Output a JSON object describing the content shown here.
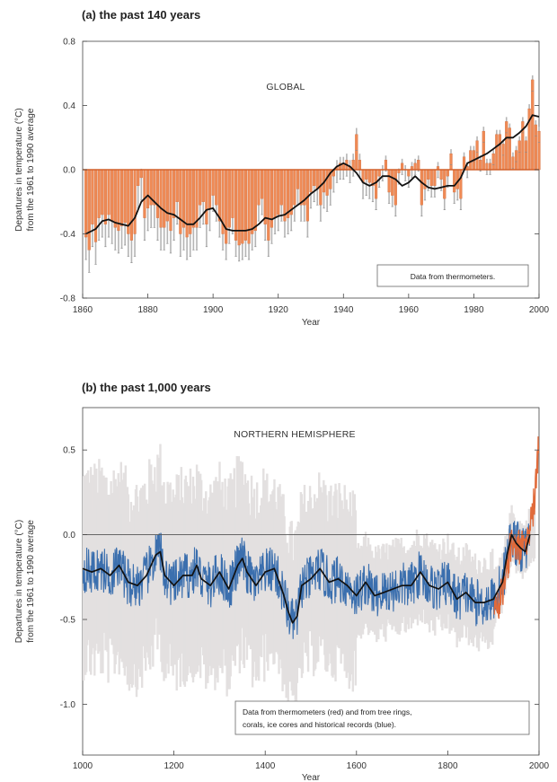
{
  "chart_data": [
    {
      "type": "bar",
      "panel_title": "(a) the past 140 years",
      "region_label": "GLOBAL",
      "xlabel": "Year",
      "ylabel_line1": "Departures in temperature (°C)",
      "ylabel_line2": "from the 1961 to 1990 average",
      "xlim": [
        1860,
        2000
      ],
      "ylim": [
        -0.8,
        0.8
      ],
      "x_ticks": [
        "1860",
        "1880",
        "1900",
        "1920",
        "1940",
        "1960",
        "1980",
        "2000"
      ],
      "y_ticks": [
        "0.8",
        "0.4",
        "0.0",
        "-0.4",
        "-0.8"
      ],
      "note": "Data from thermometers.",
      "bar_color": "#ef8a55",
      "smooth_color": "#111111",
      "series": [
        {
          "kind": "annual_bars",
          "x": [
            1861,
            1862,
            1863,
            1864,
            1865,
            1866,
            1867,
            1868,
            1869,
            1870,
            1871,
            1872,
            1873,
            1874,
            1875,
            1876,
            1877,
            1878,
            1879,
            1880,
            1881,
            1882,
            1883,
            1884,
            1885,
            1886,
            1887,
            1888,
            1889,
            1890,
            1891,
            1892,
            1893,
            1894,
            1895,
            1896,
            1897,
            1898,
            1899,
            1900,
            1901,
            1902,
            1903,
            1904,
            1905,
            1906,
            1907,
            1908,
            1909,
            1910,
            1911,
            1912,
            1913,
            1914,
            1915,
            1916,
            1917,
            1918,
            1919,
            1920,
            1921,
            1922,
            1923,
            1924,
            1925,
            1926,
            1927,
            1928,
            1929,
            1930,
            1931,
            1932,
            1933,
            1934,
            1935,
            1936,
            1937,
            1938,
            1939,
            1940,
            1941,
            1942,
            1943,
            1944,
            1945,
            1946,
            1947,
            1948,
            1949,
            1950,
            1951,
            1952,
            1953,
            1954,
            1955,
            1956,
            1957,
            1958,
            1959,
            1960,
            1961,
            1962,
            1963,
            1964,
            1965,
            1966,
            1967,
            1968,
            1969,
            1970,
            1971,
            1972,
            1973,
            1974,
            1975,
            1976,
            1977,
            1978,
            1979,
            1980,
            1981,
            1982,
            1983,
            1984,
            1985,
            1986,
            1987,
            1988,
            1989,
            1990,
            1991,
            1992,
            1993,
            1994,
            1995,
            1996,
            1997,
            1998,
            1999,
            2000
          ],
          "values": [
            -0.42,
            -0.5,
            -0.34,
            -0.45,
            -0.3,
            -0.28,
            -0.34,
            -0.28,
            -0.32,
            -0.36,
            -0.38,
            -0.35,
            -0.33,
            -0.4,
            -0.44,
            -0.4,
            -0.1,
            -0.05,
            -0.3,
            -0.24,
            -0.22,
            -0.22,
            -0.3,
            -0.36,
            -0.36,
            -0.32,
            -0.38,
            -0.3,
            -0.2,
            -0.4,
            -0.36,
            -0.42,
            -0.4,
            -0.36,
            -0.36,
            -0.22,
            -0.2,
            -0.34,
            -0.24,
            -0.16,
            -0.22,
            -0.32,
            -0.4,
            -0.46,
            -0.36,
            -0.3,
            -0.44,
            -0.47,
            -0.46,
            -0.44,
            -0.46,
            -0.4,
            -0.38,
            -0.22,
            -0.18,
            -0.34,
            -0.44,
            -0.36,
            -0.3,
            -0.28,
            -0.22,
            -0.32,
            -0.3,
            -0.28,
            -0.22,
            -0.12,
            -0.22,
            -0.22,
            -0.32,
            -0.14,
            -0.1,
            -0.12,
            -0.22,
            -0.14,
            -0.16,
            -0.12,
            -0.04,
            0.02,
            0.04,
            0.04,
            0.06,
            0.02,
            0.06,
            0.22,
            0.06,
            -0.08,
            -0.06,
            -0.08,
            -0.1,
            -0.18,
            -0.04,
            0.0,
            0.06,
            -0.14,
            -0.16,
            -0.22,
            -0.02,
            0.04,
            0.0,
            -0.04,
            0.02,
            0.04,
            0.06,
            -0.22,
            -0.12,
            -0.06,
            -0.1,
            -0.1,
            0.02,
            -0.06,
            -0.18,
            -0.04,
            0.1,
            -0.14,
            -0.12,
            -0.18,
            0.08,
            0.02,
            0.12,
            0.12,
            0.18,
            0.06,
            0.24,
            0.04,
            0.04,
            0.1,
            0.22,
            0.22,
            0.16,
            0.3,
            0.26,
            0.08,
            0.12,
            0.18,
            0.3,
            0.18,
            0.38,
            0.56,
            0.28,
            0.24
          ]
        },
        {
          "kind": "smoothed_curve",
          "x": [
            1861,
            1864,
            1866,
            1868,
            1870,
            1872,
            1874,
            1876,
            1878,
            1880,
            1882,
            1884,
            1886,
            1888,
            1890,
            1892,
            1894,
            1896,
            1898,
            1900,
            1902,
            1904,
            1906,
            1908,
            1910,
            1912,
            1914,
            1916,
            1918,
            1920,
            1922,
            1924,
            1926,
            1928,
            1930,
            1932,
            1934,
            1936,
            1938,
            1940,
            1942,
            1944,
            1946,
            1948,
            1950,
            1952,
            1954,
            1956,
            1958,
            1960,
            1962,
            1964,
            1966,
            1968,
            1970,
            1972,
            1974,
            1976,
            1978,
            1980,
            1982,
            1984,
            1986,
            1988,
            1990,
            1992,
            1994,
            1996,
            1998,
            2000
          ],
          "values": [
            -0.4,
            -0.37,
            -0.32,
            -0.31,
            -0.33,
            -0.34,
            -0.35,
            -0.3,
            -0.2,
            -0.16,
            -0.2,
            -0.24,
            -0.27,
            -0.28,
            -0.31,
            -0.34,
            -0.34,
            -0.3,
            -0.25,
            -0.24,
            -0.3,
            -0.37,
            -0.38,
            -0.38,
            -0.38,
            -0.37,
            -0.34,
            -0.3,
            -0.31,
            -0.29,
            -0.28,
            -0.25,
            -0.22,
            -0.19,
            -0.15,
            -0.12,
            -0.08,
            -0.02,
            0.02,
            0.04,
            0.02,
            -0.02,
            -0.08,
            -0.1,
            -0.08,
            -0.04,
            -0.04,
            -0.06,
            -0.1,
            -0.08,
            -0.04,
            -0.08,
            -0.11,
            -0.12,
            -0.11,
            -0.1,
            -0.1,
            -0.05,
            0.04,
            0.06,
            0.08,
            0.1,
            0.13,
            0.16,
            0.2,
            0.2,
            0.23,
            0.27,
            0.34,
            0.33
          ]
        }
      ]
    },
    {
      "type": "line",
      "panel_title": "(b) the past 1,000 years",
      "region_label": "NORTHERN HEMISPHERE",
      "xlabel": "Year",
      "ylabel_line1": "Departures in temperature (°C)",
      "ylabel_line2": "from the 1961 to 1990 average",
      "xlim": [
        1000,
        2000
      ],
      "ylim": [
        -1.3,
        0.75
      ],
      "x_ticks": [
        "1000",
        "1200",
        "1400",
        "1600",
        "1800",
        "2000"
      ],
      "y_ticks": [
        "0.5",
        "0.0",
        "-0.5",
        "-1.0"
      ],
      "note_line1": "Data from thermometers (red) and from tree rings,",
      "note_line2": "corals, ice cores and historical records (blue).",
      "proxy_color": "#3b6fae",
      "thermometer_color": "#e06a3a",
      "uncertainty_color": "#e3e0e0",
      "smooth_color": "#111111",
      "series": [
        {
          "kind": "smoothed_curve",
          "x": [
            1000,
            1020,
            1040,
            1060,
            1080,
            1100,
            1120,
            1140,
            1160,
            1170,
            1180,
            1200,
            1220,
            1240,
            1250,
            1260,
            1280,
            1300,
            1320,
            1340,
            1350,
            1360,
            1380,
            1400,
            1420,
            1440,
            1450,
            1460,
            1470,
            1480,
            1500,
            1520,
            1540,
            1560,
            1580,
            1600,
            1620,
            1640,
            1660,
            1680,
            1700,
            1720,
            1740,
            1760,
            1780,
            1800,
            1820,
            1840,
            1860,
            1880,
            1900,
            1920,
            1930,
            1940,
            1950,
            1960,
            1970,
            1980
          ],
          "values": [
            -0.2,
            -0.22,
            -0.2,
            -0.24,
            -0.18,
            -0.28,
            -0.3,
            -0.24,
            -0.12,
            -0.1,
            -0.24,
            -0.3,
            -0.24,
            -0.24,
            -0.18,
            -0.26,
            -0.3,
            -0.22,
            -0.32,
            -0.18,
            -0.14,
            -0.22,
            -0.3,
            -0.22,
            -0.2,
            -0.35,
            -0.45,
            -0.52,
            -0.48,
            -0.3,
            -0.26,
            -0.2,
            -0.28,
            -0.26,
            -0.3,
            -0.36,
            -0.28,
            -0.36,
            -0.34,
            -0.32,
            -0.3,
            -0.3,
            -0.22,
            -0.3,
            -0.32,
            -0.28,
            -0.38,
            -0.34,
            -0.4,
            -0.4,
            -0.38,
            -0.28,
            -0.12,
            0.0,
            -0.05,
            -0.08,
            -0.1,
            0.0
          ]
        }
      ]
    }
  ]
}
